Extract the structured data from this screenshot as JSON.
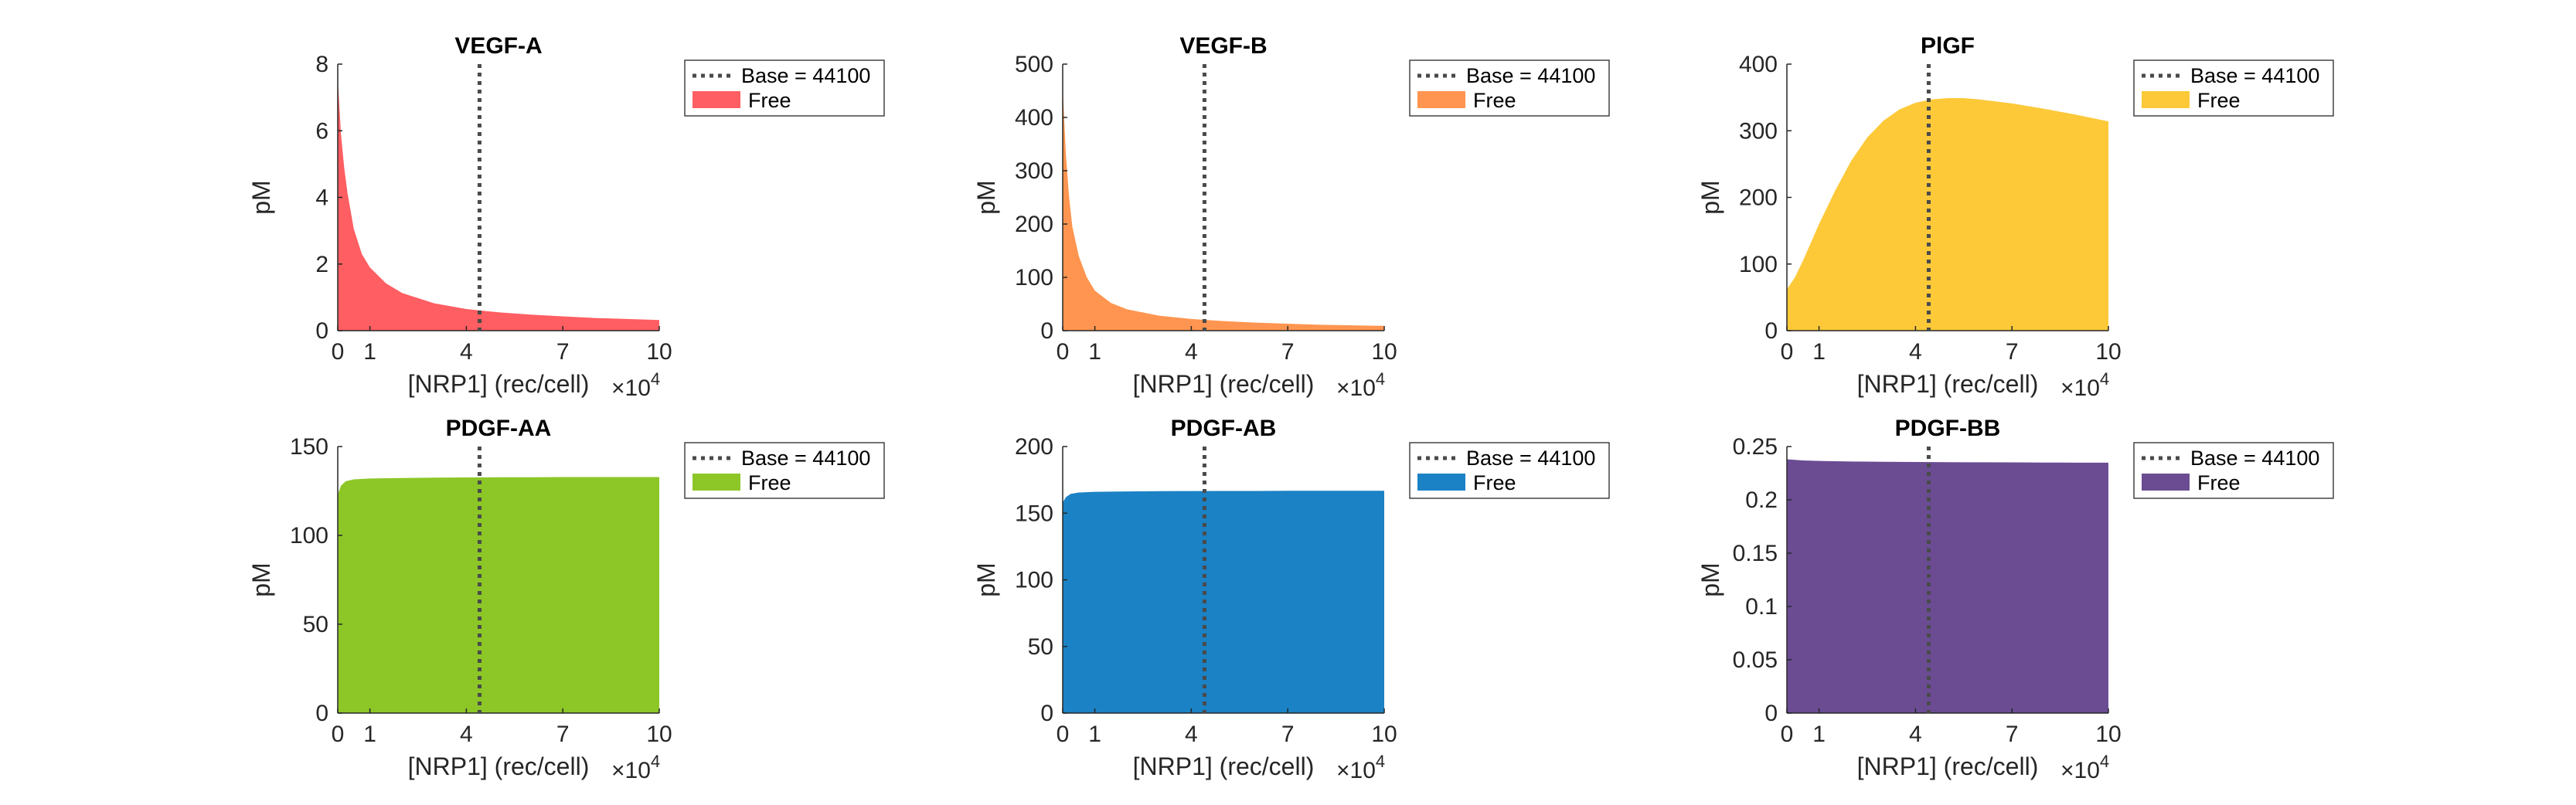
{
  "figure": {
    "background": "#ffffff"
  },
  "chart_data": [
    {
      "type": "area",
      "title": "VEGF-A",
      "xlabel": "[NRP1] (rec/cell)",
      "ylabel": "pM",
      "x_exponent_base": "×10",
      "x_exponent": "4",
      "xlim": [
        0,
        10
      ],
      "ylim": [
        0,
        8
      ],
      "xticks": [
        0,
        1,
        4,
        7,
        10
      ],
      "yticks": [
        0,
        2,
        4,
        6,
        8
      ],
      "color": "#FF5E62",
      "baseline_x": 4.41,
      "legend": {
        "baseline": "Base = 44100",
        "series": "Free"
      },
      "x": [
        0,
        0.1,
        0.2,
        0.3,
        0.5,
        0.75,
        1,
        1.5,
        2,
        3,
        4,
        5,
        6,
        7,
        8,
        9,
        10
      ],
      "y": [
        7.6,
        5.9,
        4.9,
        4.15,
        3.05,
        2.3,
        1.9,
        1.42,
        1.13,
        0.82,
        0.65,
        0.55,
        0.48,
        0.43,
        0.38,
        0.35,
        0.32
      ]
    },
    {
      "type": "area",
      "title": "VEGF-B",
      "xlabel": "[NRP1] (rec/cell)",
      "ylabel": "pM",
      "x_exponent_base": "×10",
      "x_exponent": "4",
      "xlim": [
        0,
        10
      ],
      "ylim": [
        0,
        500
      ],
      "xticks": [
        0,
        1,
        4,
        7,
        10
      ],
      "yticks": [
        0,
        100,
        200,
        300,
        400,
        500
      ],
      "color": "#FF9550",
      "baseline_x": 4.41,
      "legend": {
        "baseline": "Base = 44100",
        "series": "Free"
      },
      "x": [
        0,
        0.1,
        0.2,
        0.3,
        0.5,
        0.75,
        1,
        1.5,
        2,
        3,
        4,
        5,
        6,
        7,
        8,
        9,
        10
      ],
      "y": [
        455,
        330,
        250,
        195,
        140,
        100,
        75,
        52,
        40,
        28,
        22,
        18,
        15,
        13,
        11,
        10,
        9
      ]
    },
    {
      "type": "area",
      "title": "PlGF",
      "xlabel": "[NRP1] (rec/cell)",
      "ylabel": "pM",
      "x_exponent_base": "×10",
      "x_exponent": "4",
      "xlim": [
        0,
        10
      ],
      "ylim": [
        0,
        400
      ],
      "xticks": [
        0,
        1,
        4,
        7,
        10
      ],
      "yticks": [
        0,
        100,
        200,
        300,
        400
      ],
      "color": "#FDC939",
      "baseline_x": 4.41,
      "legend": {
        "baseline": "Base = 44100",
        "series": "Free"
      },
      "x": [
        0,
        0.25,
        0.5,
        1,
        1.5,
        2,
        2.5,
        3,
        3.5,
        4,
        4.5,
        5,
        5.5,
        6,
        7,
        8,
        9,
        10
      ],
      "y": [
        62,
        80,
        105,
        160,
        210,
        255,
        290,
        315,
        332,
        342,
        347,
        349,
        349,
        347,
        341,
        333,
        324,
        314
      ]
    },
    {
      "type": "area",
      "title": "PDGF-AA",
      "xlabel": "[NRP1] (rec/cell)",
      "ylabel": "pM",
      "x_exponent_base": "×10",
      "x_exponent": "4",
      "xlim": [
        0,
        10
      ],
      "ylim": [
        0,
        150
      ],
      "xticks": [
        0,
        1,
        4,
        7,
        10
      ],
      "yticks": [
        0,
        50,
        100,
        150
      ],
      "color": "#8CC727",
      "baseline_x": 4.41,
      "legend": {
        "baseline": "Base = 44100",
        "series": "Free"
      },
      "x": [
        0,
        0.1,
        0.25,
        0.5,
        1,
        2,
        3,
        4,
        5,
        6,
        7,
        8,
        9,
        10
      ],
      "y": [
        123,
        128,
        130.5,
        131.5,
        132,
        132.3,
        132.5,
        132.6,
        132.7,
        132.7,
        132.8,
        132.8,
        132.8,
        132.8
      ]
    },
    {
      "type": "area",
      "title": "PDGF-AB",
      "xlabel": "[NRP1] (rec/cell)",
      "ylabel": "pM",
      "x_exponent_base": "×10",
      "x_exponent": "4",
      "xlim": [
        0,
        10
      ],
      "ylim": [
        0,
        200
      ],
      "xticks": [
        0,
        1,
        4,
        7,
        10
      ],
      "yticks": [
        0,
        50,
        100,
        150,
        200
      ],
      "color": "#1B82C5",
      "baseline_x": 4.41,
      "legend": {
        "baseline": "Base = 44100",
        "series": "Free"
      },
      "x": [
        0,
        0.1,
        0.25,
        0.5,
        1,
        2,
        3,
        4,
        5,
        6,
        7,
        8,
        9,
        10
      ],
      "y": [
        158,
        162,
        164.5,
        165.5,
        166,
        166.3,
        166.5,
        166.6,
        166.7,
        166.7,
        166.8,
        166.8,
        166.8,
        166.8
      ]
    },
    {
      "type": "area",
      "title": "PDGF-BB",
      "xlabel": "[NRP1] (rec/cell)",
      "ylabel": "pM",
      "x_exponent_base": "×10",
      "x_exponent": "4",
      "xlim": [
        0,
        10
      ],
      "ylim": [
        0,
        0.25
      ],
      "xticks": [
        0,
        1,
        4,
        7,
        10
      ],
      "yticks": [
        0,
        0.05,
        0.1,
        0.15,
        0.2,
        0.25
      ],
      "ytick_labels": [
        "0",
        "0.05",
        "0.1",
        "0.15",
        "0.2",
        "0.25"
      ],
      "color": "#6B4C93",
      "baseline_x": 4.41,
      "legend": {
        "baseline": "Base = 44100",
        "series": "Free"
      },
      "x": [
        0,
        0.5,
        1,
        2,
        3,
        4,
        5,
        6,
        7,
        8,
        9,
        10
      ],
      "y": [
        0.238,
        0.237,
        0.2365,
        0.236,
        0.2357,
        0.2355,
        0.2353,
        0.2352,
        0.2351,
        0.235,
        0.2349,
        0.2349
      ]
    }
  ]
}
